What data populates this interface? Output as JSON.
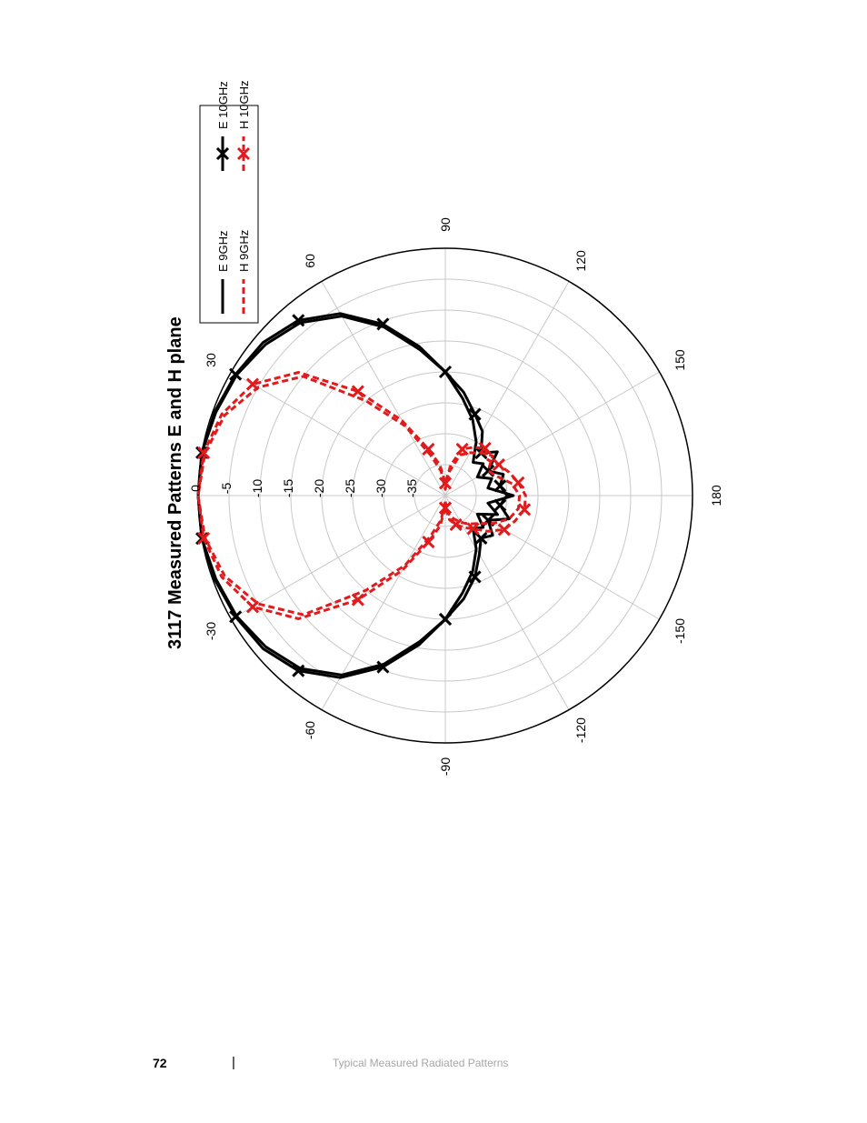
{
  "chart_data": {
    "type": "polar",
    "title": "3117 Measured Patterns E and H plane",
    "radial_axis": {
      "min": -40,
      "max": 0,
      "ticks": [
        0,
        -5,
        -10,
        -15,
        -20,
        -25,
        -30,
        -35
      ],
      "unit": "dB"
    },
    "angular_axis": {
      "ticks": [
        0,
        30,
        60,
        90,
        120,
        150,
        180,
        -150,
        -120,
        -90,
        -60,
        -30
      ],
      "unit": "deg"
    },
    "grid": true,
    "legend_position": "top-left (rotated layout)",
    "series": [
      {
        "name": "E 9GHz",
        "color": "#000000",
        "style": "solid",
        "marker": "none",
        "points": [
          [
            -90,
            -20
          ],
          [
            -80,
            -16
          ],
          [
            -70,
            -11
          ],
          [
            -60,
            -6.5
          ],
          [
            -50,
            -3.5
          ],
          [
            -40,
            -2
          ],
          [
            -30,
            -1
          ],
          [
            -20,
            -0.5
          ],
          [
            -10,
            0
          ],
          [
            0,
            0
          ],
          [
            10,
            0
          ],
          [
            20,
            -0.5
          ],
          [
            30,
            -1
          ],
          [
            40,
            -2
          ],
          [
            50,
            -3.5
          ],
          [
            60,
            -6.5
          ],
          [
            70,
            -11
          ],
          [
            80,
            -16
          ],
          [
            90,
            -20
          ],
          [
            100,
            -24
          ],
          [
            110,
            -27
          ],
          [
            120,
            -30
          ],
          [
            130,
            -33
          ],
          [
            140,
            -32
          ],
          [
            150,
            -34
          ],
          [
            160,
            -32
          ],
          [
            170,
            -33
          ],
          [
            180,
            -29
          ],
          [
            -170,
            -33
          ],
          [
            -160,
            -31
          ],
          [
            -150,
            -34
          ],
          [
            -140,
            -32
          ],
          [
            -130,
            -33
          ],
          [
            -120,
            -30
          ],
          [
            -110,
            -27
          ],
          [
            -100,
            -24
          ],
          [
            -90,
            -20
          ]
        ]
      },
      {
        "name": "E 10GHz",
        "color": "#000000",
        "style": "solid",
        "marker": "x",
        "points": [
          [
            -90,
            -20
          ],
          [
            -80,
            -15.5
          ],
          [
            -70,
            -10.5
          ],
          [
            -60,
            -6
          ],
          [
            -50,
            -3
          ],
          [
            -40,
            -1.5
          ],
          [
            -30,
            -0.8
          ],
          [
            -20,
            -0.3
          ],
          [
            -10,
            0
          ],
          [
            0,
            0
          ],
          [
            10,
            0
          ],
          [
            20,
            -0.3
          ],
          [
            30,
            -0.8
          ],
          [
            40,
            -1.5
          ],
          [
            50,
            -3
          ],
          [
            60,
            -6
          ],
          [
            70,
            -10.5
          ],
          [
            80,
            -15.5
          ],
          [
            90,
            -20
          ],
          [
            100,
            -23
          ],
          [
            110,
            -26
          ],
          [
            120,
            -28
          ],
          [
            130,
            -31
          ],
          [
            140,
            -29
          ],
          [
            150,
            -32
          ],
          [
            160,
            -30
          ],
          [
            170,
            -31
          ],
          [
            180,
            -30
          ],
          [
            -170,
            -31
          ],
          [
            -160,
            -29
          ],
          [
            -150,
            -32
          ],
          [
            -140,
            -30
          ],
          [
            -130,
            -31
          ],
          [
            -120,
            -29
          ],
          [
            -110,
            -26
          ],
          [
            -100,
            -23
          ],
          [
            -90,
            -20
          ]
        ]
      },
      {
        "name": "H 9GHz",
        "color": "#e31a1c",
        "style": "dashed",
        "marker": "none",
        "points": [
          [
            -90,
            -39
          ],
          [
            -80,
            -36
          ],
          [
            -70,
            -33
          ],
          [
            -60,
            -27
          ],
          [
            -50,
            -20
          ],
          [
            -40,
            -10
          ],
          [
            -30,
            -5
          ],
          [
            -20,
            -2
          ],
          [
            -10,
            -0.5
          ],
          [
            0,
            0
          ],
          [
            10,
            -0.5
          ],
          [
            20,
            -2
          ],
          [
            30,
            -5
          ],
          [
            40,
            -10
          ],
          [
            50,
            -20
          ],
          [
            60,
            -27
          ],
          [
            70,
            -33
          ],
          [
            80,
            -36
          ],
          [
            90,
            -39
          ],
          [
            100,
            -36
          ],
          [
            110,
            -33
          ],
          [
            120,
            -32
          ],
          [
            130,
            -31
          ],
          [
            140,
            -30
          ],
          [
            150,
            -32
          ],
          [
            160,
            -31
          ],
          [
            170,
            -29
          ],
          [
            180,
            -28
          ],
          [
            -170,
            -28
          ],
          [
            -160,
            -29
          ],
          [
            -150,
            -31
          ],
          [
            -140,
            -33
          ],
          [
            -130,
            -34
          ],
          [
            -120,
            -35
          ],
          [
            -110,
            -36
          ],
          [
            -100,
            -37
          ],
          [
            -90,
            -39
          ]
        ]
      },
      {
        "name": "H 10GHz",
        "color": "#e31a1c",
        "style": "dashed",
        "marker": "x",
        "points": [
          [
            -90,
            -38
          ],
          [
            -80,
            -35
          ],
          [
            -70,
            -32
          ],
          [
            -60,
            -26
          ],
          [
            -50,
            -18
          ],
          [
            -40,
            -9
          ],
          [
            -30,
            -4
          ],
          [
            -20,
            -1.5
          ],
          [
            -10,
            -0.3
          ],
          [
            0,
            0
          ],
          [
            10,
            -0.3
          ],
          [
            20,
            -1.5
          ],
          [
            30,
            -4
          ],
          [
            40,
            -9
          ],
          [
            50,
            -18
          ],
          [
            60,
            -26
          ],
          [
            70,
            -32
          ],
          [
            80,
            -35
          ],
          [
            90,
            -38
          ],
          [
            100,
            -35
          ],
          [
            110,
            -32
          ],
          [
            120,
            -31
          ],
          [
            130,
            -30
          ],
          [
            140,
            -31
          ],
          [
            150,
            -30
          ],
          [
            160,
            -29
          ],
          [
            170,
            -28
          ],
          [
            180,
            -27
          ],
          [
            -170,
            -27
          ],
          [
            -160,
            -28
          ],
          [
            -150,
            -29
          ],
          [
            -140,
            -31
          ],
          [
            -130,
            -33
          ],
          [
            -120,
            -34
          ],
          [
            -110,
            -35
          ],
          [
            -100,
            -36
          ],
          [
            -90,
            -38
          ]
        ]
      }
    ]
  },
  "footer": {
    "page_number": "72",
    "separator": "|",
    "title": "Typical Measured Radiated Patterns"
  }
}
